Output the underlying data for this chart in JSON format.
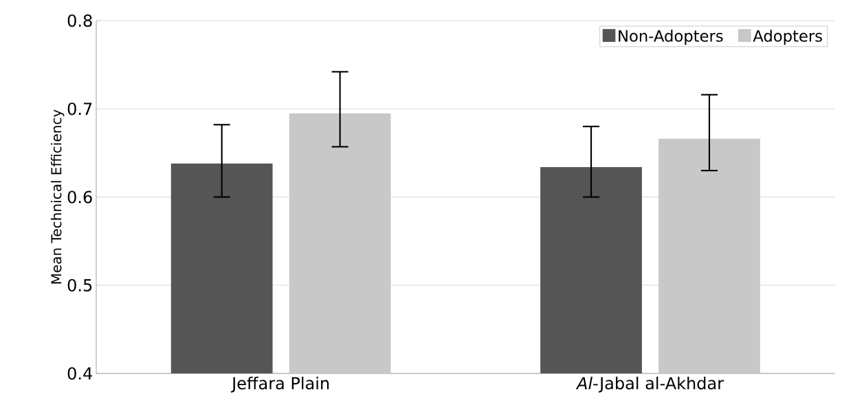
{
  "chart_data": {
    "type": "bar",
    "ylabel": "Mean Technical Efficiency",
    "categories": [
      "Jeffara Plain",
      "*Al*-Jabal al-Akhdar"
    ],
    "series": [
      {
        "name": "Non-Adopters",
        "color": "#555555",
        "values": [
          0.638,
          0.634
        ],
        "errors": [
          [
            0.6,
            0.682
          ],
          [
            0.6,
            0.68
          ]
        ]
      },
      {
        "name": "Adopters",
        "color": "#c8c8c8",
        "values": [
          0.695,
          0.666
        ],
        "errors": [
          [
            0.657,
            0.742
          ],
          [
            0.63,
            0.716
          ]
        ]
      }
    ],
    "ylim": [
      0.4,
      0.8
    ],
    "yticks": [
      0.4,
      0.5,
      0.6,
      0.7,
      0.8
    ],
    "grid": "y",
    "legend": "top right"
  }
}
